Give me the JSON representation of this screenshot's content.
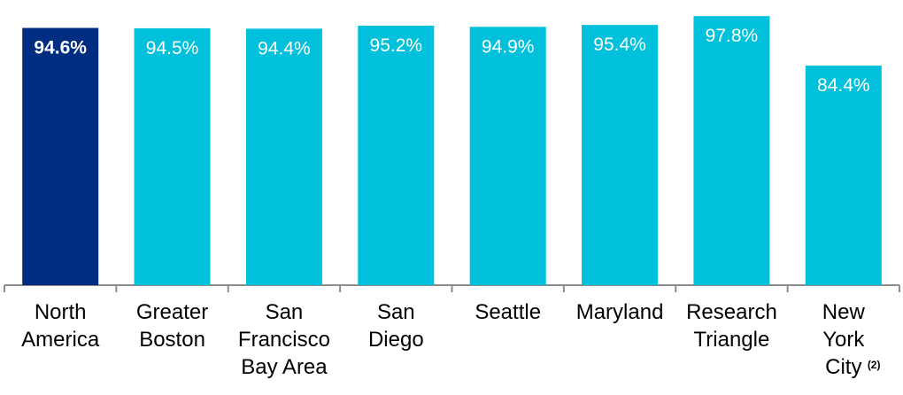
{
  "chart_data": {
    "type": "bar",
    "categories": [
      "North\nAmerica",
      "Greater\nBoston",
      "San\nFrancisco\nBay Area",
      "San\nDiego",
      "Seattle",
      "Maryland",
      "Research\nTriangle",
      "New\nYork\nCity"
    ],
    "values": [
      94.6,
      94.5,
      94.4,
      95.2,
      94.9,
      95.4,
      97.8,
      84.4
    ],
    "value_labels": [
      "94.6%",
      "94.5%",
      "94.4%",
      "95.2%",
      "94.9%",
      "95.4%",
      "97.8%",
      "84.4%"
    ],
    "colors": [
      "#002d7f",
      "#00c0dc",
      "#00c0dc",
      "#00c0dc",
      "#00c0dc",
      "#00c0dc",
      "#00c0dc",
      "#00c0dc"
    ],
    "ylim": [
      25,
      100
    ],
    "footnote": "(2)"
  }
}
